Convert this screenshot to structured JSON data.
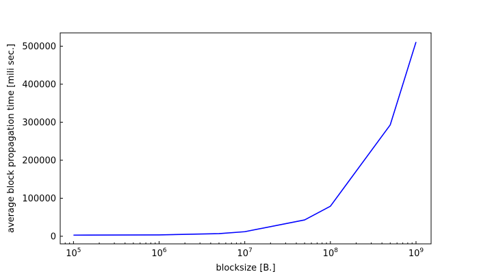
{
  "chart_data": {
    "type": "line",
    "title": "",
    "xlabel": "blocksize [B.]",
    "ylabel": "average block propagation time [mili sec.]",
    "x_scale": "log",
    "xlim": [
      70000,
      1500000000
    ],
    "ylim": [
      -20000,
      535000
    ],
    "x_ticks": [
      {
        "value": 100000,
        "base": "10",
        "exp": "5"
      },
      {
        "value": 1000000,
        "base": "10",
        "exp": "6"
      },
      {
        "value": 10000000,
        "base": "10",
        "exp": "7"
      },
      {
        "value": 100000000,
        "base": "10",
        "exp": "8"
      },
      {
        "value": 1000000000,
        "base": "10",
        "exp": "9"
      }
    ],
    "y_ticks": [
      0,
      100000,
      200000,
      300000,
      400000,
      500000
    ],
    "y_tick_labels": [
      "0",
      "100000",
      "200000",
      "300000",
      "400000",
      "500000"
    ],
    "grid": false,
    "series": [
      {
        "color": "#0000ff",
        "x": [
          100000,
          1000000,
          5000000,
          10000000,
          50000000,
          100000000,
          500000000,
          1000000000
        ],
        "y": [
          3000,
          3500,
          7000,
          12000,
          43000,
          79000,
          293000,
          511000
        ]
      }
    ]
  }
}
